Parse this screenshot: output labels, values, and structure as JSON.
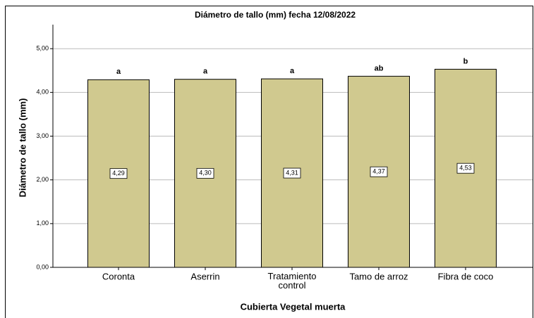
{
  "chart_data": {
    "type": "bar",
    "title": "Diámetro de tallo (mm) fecha 12/08/2022",
    "x_label": "Cubierta Vegetal muerta",
    "y_label": "Diámetro de tallo (mm)",
    "categories": [
      "Coronta",
      "Aserrin",
      "Tratamiento control",
      "Tamo de arroz",
      "Fibra de coco"
    ],
    "values": [
      4.29,
      4.3,
      4.31,
      4.37,
      4.53
    ],
    "value_labels": [
      "4,29",
      "4,30",
      "4,31",
      "4,37",
      "4,53"
    ],
    "annotations": [
      "a",
      "a",
      "a",
      "ab",
      "b"
    ],
    "color": "#d0c98f",
    "ylim": [
      0,
      5.55
    ],
    "yticks": [
      {
        "value": 0,
        "label": "0,00"
      },
      {
        "value": 1,
        "label": "1,00"
      },
      {
        "value": 2,
        "label": "2,00"
      },
      {
        "value": 3,
        "label": "3,00"
      },
      {
        "value": 4,
        "label": "4,00"
      },
      {
        "value": 5,
        "label": "5,00"
      }
    ],
    "grid": true
  }
}
